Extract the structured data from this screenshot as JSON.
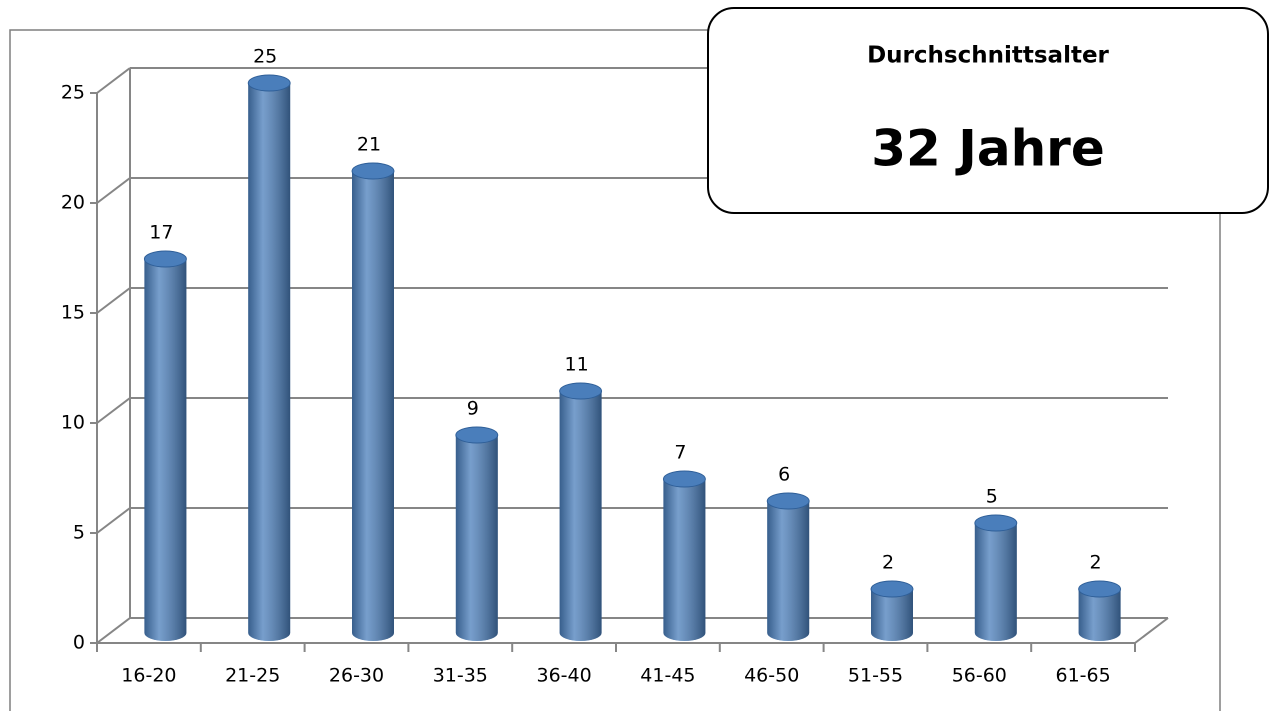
{
  "chart_data": {
    "type": "bar",
    "categories": [
      "16-20",
      "21-25",
      "26-30",
      "31-35",
      "36-40",
      "41-45",
      "46-50",
      "51-55",
      "56-60",
      "61-65"
    ],
    "values": [
      17,
      25,
      21,
      9,
      11,
      7,
      6,
      2,
      5,
      2
    ],
    "color": "#4a7ebb",
    "ylim": [
      0,
      25
    ],
    "yticks": [
      0,
      5,
      10,
      15,
      20,
      25
    ],
    "grid": true,
    "annotation_title": "Durchschnittsalter",
    "annotation_value": "32 Jahre"
  }
}
